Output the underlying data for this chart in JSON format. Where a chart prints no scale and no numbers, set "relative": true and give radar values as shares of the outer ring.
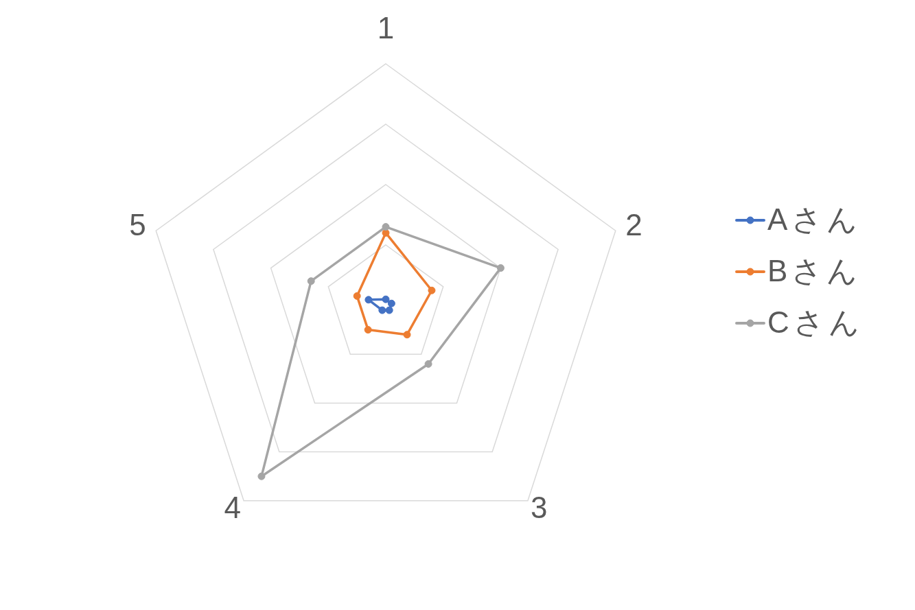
{
  "chart_data": {
    "type": "radar",
    "categories": [
      "1",
      "2",
      "3",
      "4",
      "5"
    ],
    "relative": true,
    "series": [
      {
        "name": "Aさん",
        "color": "#4472c4",
        "values": [
          0.025,
          0.025,
          0.025,
          0.025,
          0.075
        ]
      },
      {
        "name": "Bさん",
        "color": "#ed7d31",
        "values": [
          0.3,
          0.2,
          0.15,
          0.125,
          0.125
        ]
      },
      {
        "name": "Cさん",
        "color": "#a5a5a5",
        "values": [
          0.325,
          0.5,
          0.3,
          0.875,
          0.325
        ]
      }
    ],
    "grid": true,
    "legend": "right",
    "marker": "circle",
    "line_style": "solid"
  }
}
